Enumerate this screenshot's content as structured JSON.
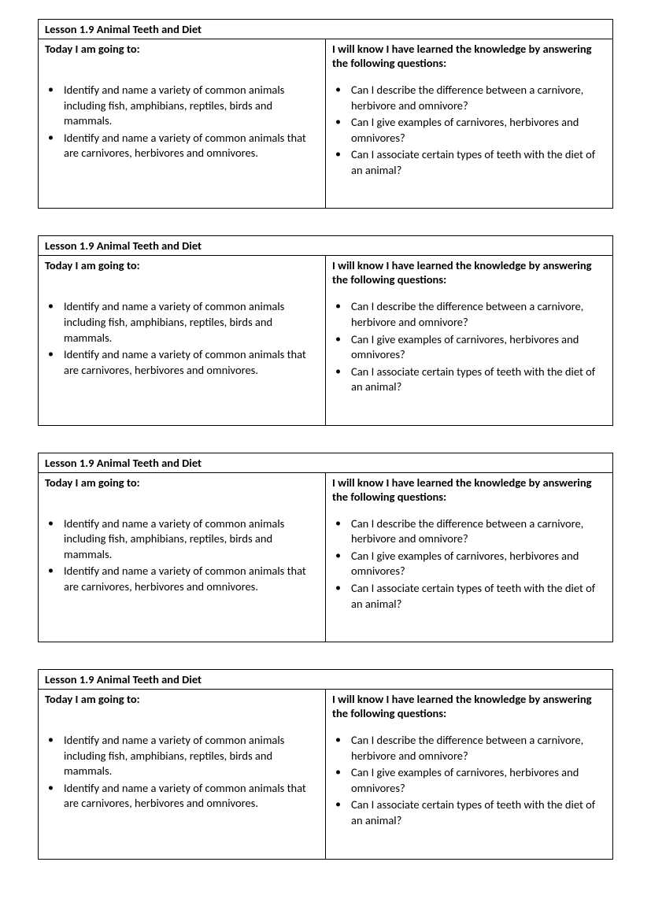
{
  "page": {
    "background_color": "#ffffff",
    "text_color": "#000000",
    "border_color": "#000000",
    "font_size_pt": 11
  },
  "lesson": {
    "title": "Lesson 1.9 Animal Teeth and Diet",
    "left_heading": "Today I am going to:",
    "right_heading": "I will know I have learned the knowledge by answering the following questions:",
    "left_items": [
      "Identify and name a variety of common animals including fish, amphibians, reptiles, birds and mammals.",
      "Identify and name a variety of common animals that are carnivores, herbivores and omnivores."
    ],
    "right_items": [
      "Can I describe the difference between a carnivore, herbivore and omnivore?",
      "Can I give examples of carnivores, herbivores and omnivores?",
      "Can I associate certain types of teeth with the diet of an animal?"
    ]
  },
  "repeat_count": 4
}
